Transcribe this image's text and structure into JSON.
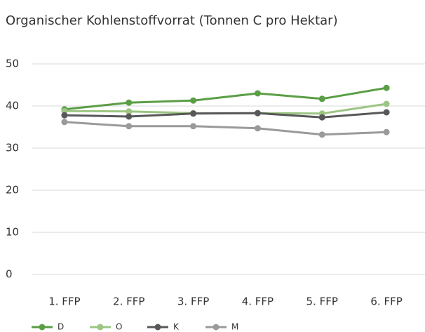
{
  "chart_data": {
    "type": "line",
    "title": "Organischer Kohlenstoffvorrat (Tonnen C pro Hektar)",
    "categories": [
      "1. FFP",
      "2. FFP",
      "3. FFP",
      "4. FFP",
      "5. FFP",
      "6. FFP"
    ],
    "series": [
      {
        "name": "D",
        "color": "#5a9e45",
        "values": [
          39.2,
          40.8,
          41.3,
          43.0,
          41.7,
          44.3
        ]
      },
      {
        "name": "O",
        "color": "#9dc583",
        "values": [
          38.8,
          38.7,
          38.3,
          38.3,
          38.2,
          40.5
        ]
      },
      {
        "name": "K",
        "color": "#58585a",
        "values": [
          37.8,
          37.5,
          38.2,
          38.3,
          37.3,
          38.5
        ]
      },
      {
        "name": "M",
        "color": "#9a9a9a",
        "values": [
          36.2,
          35.2,
          35.2,
          34.7,
          33.2,
          33.8
        ]
      }
    ],
    "ylim": [
      0,
      50
    ],
    "yticks": [
      0,
      10,
      20,
      30,
      40,
      50
    ],
    "grid": true,
    "legend": "bottom"
  }
}
